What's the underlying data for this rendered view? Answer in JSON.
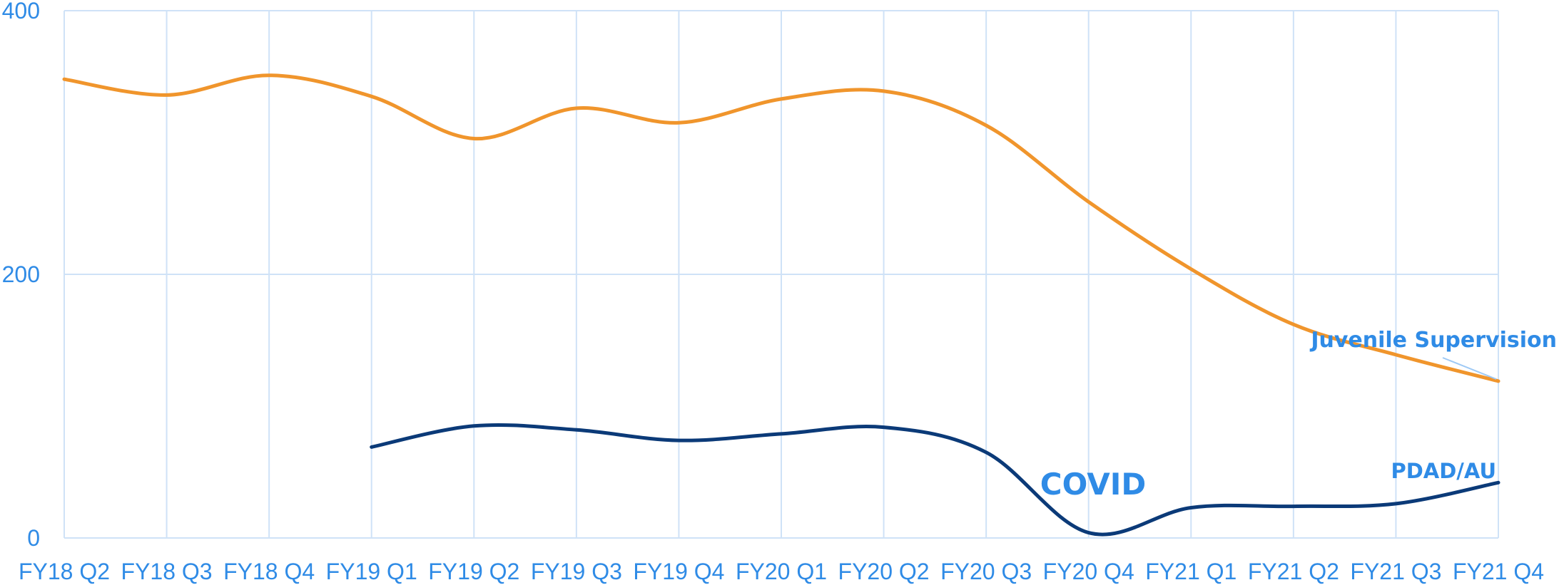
{
  "chart_data": {
    "type": "line",
    "title": "",
    "xlabel": "",
    "ylabel": "",
    "categories": [
      "FY18 Q2",
      "FY18 Q3",
      "FY18 Q4",
      "FY19 Q1",
      "FY19 Q2",
      "FY19 Q3",
      "FY19 Q4",
      "FY20 Q1",
      "FY20 Q2",
      "FY20 Q3",
      "FY20 Q4",
      "FY21 Q1",
      "FY21 Q2",
      "FY21 Q3",
      "FY21 Q4"
    ],
    "ylim": [
      0,
      400
    ],
    "yticks": [
      "0",
      "200",
      "400"
    ],
    "grid": true,
    "series": [
      {
        "name": "Juvenile Supervision",
        "color": "#f0952c",
        "values": [
          348,
          336,
          351,
          335,
          303,
          326,
          315,
          333,
          339,
          313,
          255,
          204,
          162,
          139,
          119
        ]
      },
      {
        "name": "PDAD/AU",
        "color": "#0b3a78",
        "values": [
          null,
          null,
          null,
          69,
          85,
          82,
          74,
          79,
          84,
          65,
          4,
          23,
          24,
          26,
          42
        ]
      }
    ],
    "annotations": [
      {
        "text": "COVID"
      }
    ]
  },
  "colors": {
    "grid": "#cfe2f7",
    "text": "#2f8be6"
  }
}
